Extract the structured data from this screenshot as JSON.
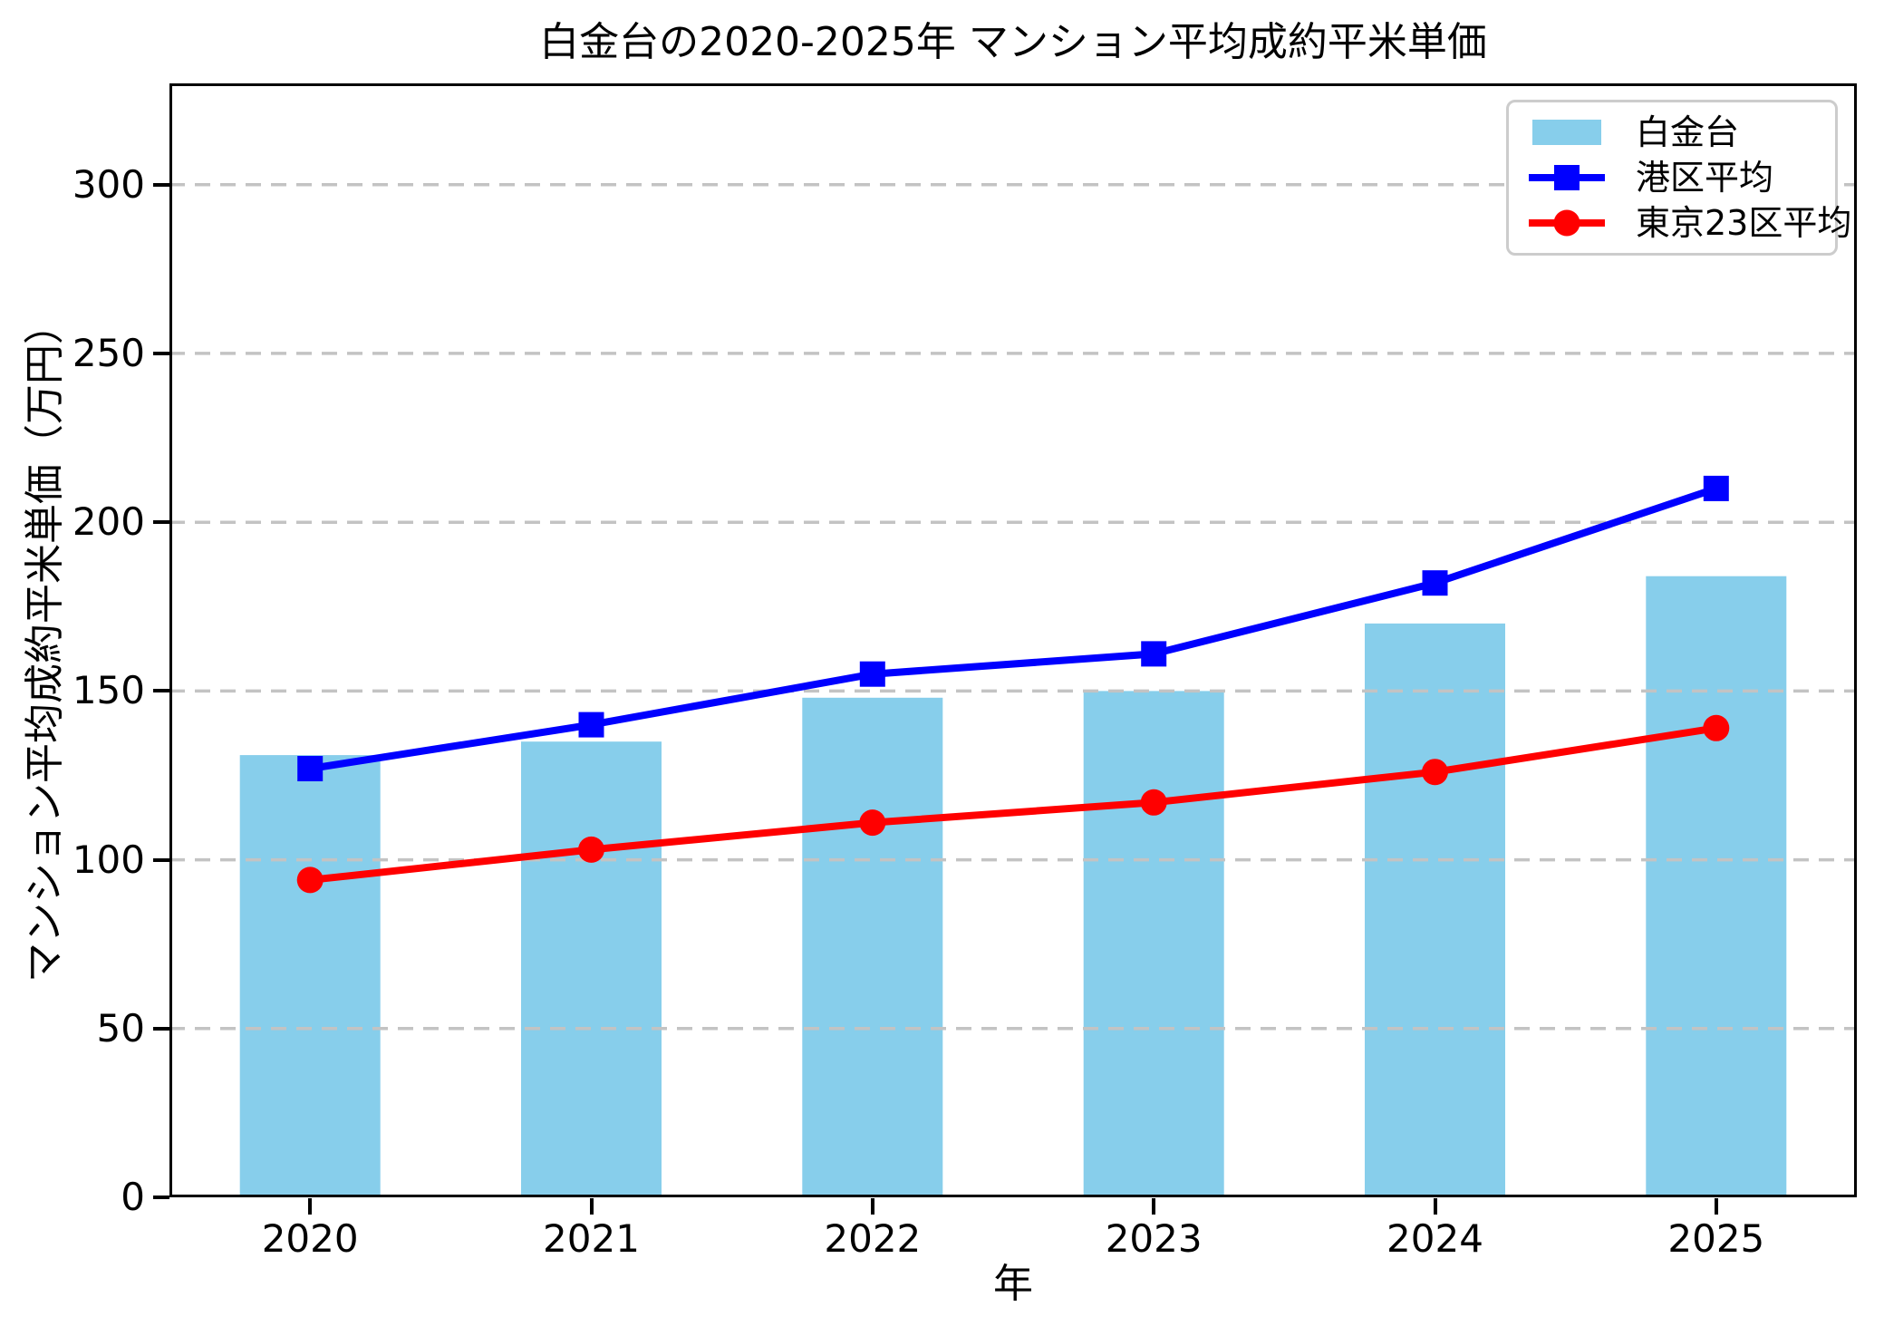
{
  "chart_data": {
    "type": "bar+line",
    "title": "白金台の2020-2025年 マンション平均成約平米単価",
    "xlabel": "年",
    "ylabel": "マンション平均成約平米単価（万円）",
    "categories": [
      "2020",
      "2021",
      "2022",
      "2023",
      "2024",
      "2025"
    ],
    "series": [
      {
        "name": "白金台",
        "type": "bar",
        "color": "#87CEEB",
        "values": [
          131,
          135,
          148,
          150,
          170,
          184
        ]
      },
      {
        "name": "港区平均",
        "type": "line",
        "marker": "square",
        "color": "#0000FF",
        "values": [
          127,
          140,
          155,
          161,
          182,
          210
        ]
      },
      {
        "name": "東京23区平均",
        "type": "line",
        "marker": "circle",
        "color": "#FF0000",
        "values": [
          94,
          103,
          111,
          117,
          126,
          139
        ]
      }
    ],
    "ylim": [
      0,
      330
    ],
    "yticks": [
      0,
      50,
      100,
      150,
      200,
      250,
      300
    ],
    "grid": {
      "axis": "y",
      "style": "dashed",
      "color": "#C3C3C3"
    },
    "legend": {
      "position": "upper right",
      "items": [
        "白金台",
        "港区平均",
        "東京23区平均"
      ]
    }
  }
}
